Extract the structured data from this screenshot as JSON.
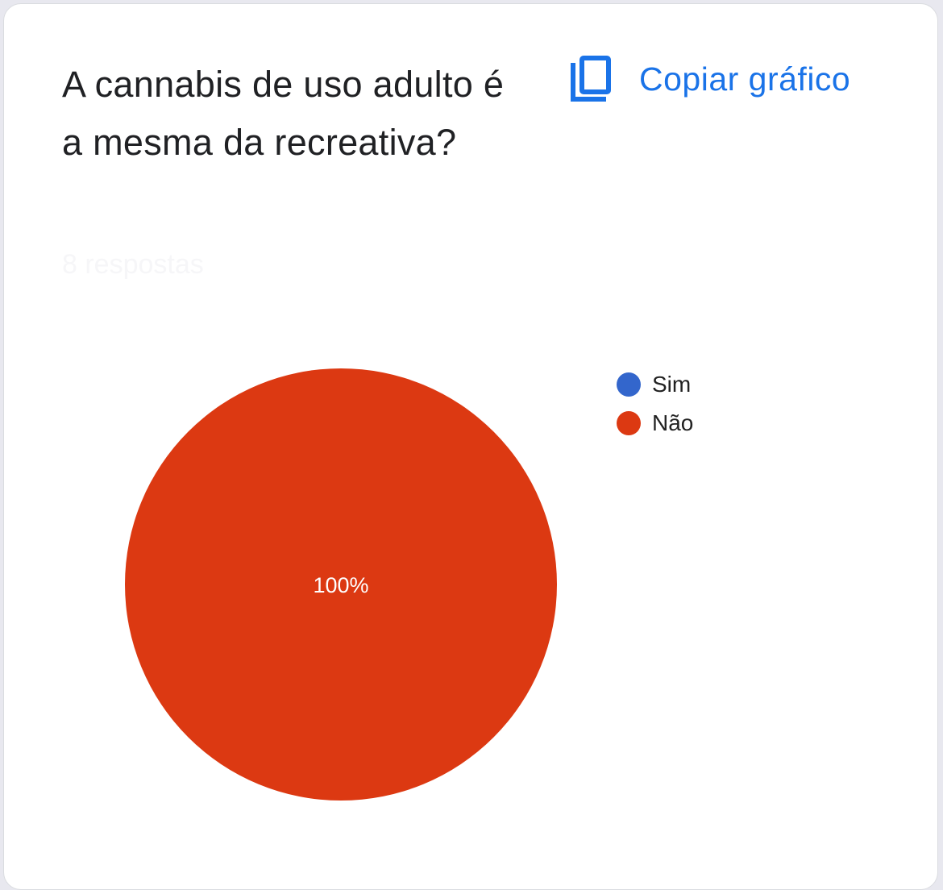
{
  "question": {
    "title": "A cannabis de uso adulto é a mesma da recreativa?",
    "response_count": "8 respostas"
  },
  "toolbar": {
    "copy_label": "Copiar gráfico",
    "copy_icon": "copy-icon"
  },
  "chart_data": {
    "type": "pie",
    "categories": [
      "Sim",
      "Não"
    ],
    "values": [
      0,
      100
    ],
    "colors": [
      "#3366cc",
      "#dc3912"
    ],
    "slice_labels": [
      "",
      "100%"
    ],
    "legend_position": "right"
  }
}
